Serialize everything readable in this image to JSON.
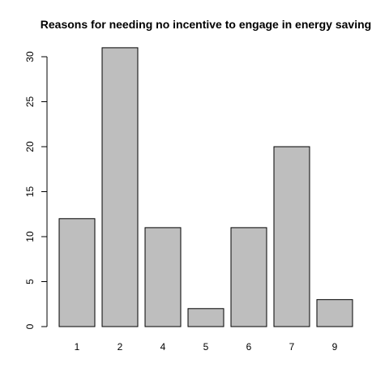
{
  "chart_data": {
    "type": "bar",
    "title": "Reasons for needing no incentive to engage in energy saving",
    "categories": [
      "1",
      "2",
      "4",
      "5",
      "6",
      "7",
      "9"
    ],
    "values": [
      12,
      31,
      11,
      2,
      11,
      20,
      3
    ],
    "ylim": [
      0,
      30
    ],
    "yticks": [
      0,
      5,
      10,
      15,
      20,
      25,
      30
    ],
    "xlabel": "",
    "ylabel": "",
    "grid": false,
    "colors": {
      "bar_fill": "#bebebe",
      "bar_stroke": "#000000"
    }
  }
}
